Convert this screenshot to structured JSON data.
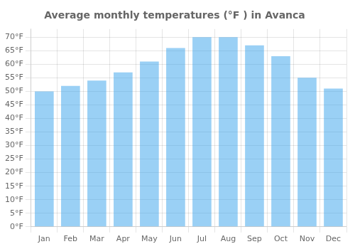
{
  "chart_data": {
    "type": "bar",
    "title": "Average monthly temperatures (°F ) in Avanca",
    "categories": [
      "Jan",
      "Feb",
      "Mar",
      "Apr",
      "May",
      "Jun",
      "Jul",
      "Aug",
      "Sep",
      "Oct",
      "Nov",
      "Dec"
    ],
    "values": [
      50,
      52,
      54,
      57,
      61,
      66,
      70,
      70,
      67,
      63,
      55,
      51
    ],
    "ylim": [
      0,
      73
    ],
    "yticks": [
      {
        "value": 0,
        "label": "0°F"
      },
      {
        "value": 5,
        "label": "5°F"
      },
      {
        "value": 10,
        "label": "10°F"
      },
      {
        "value": 15,
        "label": "15°F"
      },
      {
        "value": 20,
        "label": "20°F"
      },
      {
        "value": 25,
        "label": "25°F"
      },
      {
        "value": 30,
        "label": "30°F"
      },
      {
        "value": 35,
        "label": "35°F"
      },
      {
        "value": 40,
        "label": "40°F"
      },
      {
        "value": 45,
        "label": "45°F"
      },
      {
        "value": 50,
        "label": "50°F"
      },
      {
        "value": 55,
        "label": "55°F"
      },
      {
        "value": 60,
        "label": "60°F"
      },
      {
        "value": 65,
        "label": "65°F"
      },
      {
        "value": 70,
        "label": "70°F"
      }
    ],
    "grid": true
  }
}
